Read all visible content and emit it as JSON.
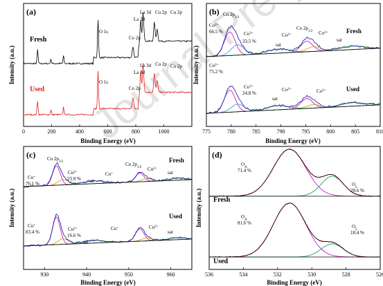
{
  "watermark": "Journal Pre-proof",
  "chart_data": [
    {
      "panel": "(a)",
      "type": "line",
      "xlabel": "Binding Energy (eV)",
      "ylabel": "Intensity (a.u.)",
      "xlim": [
        0,
        1200
      ],
      "xticks": [
        0,
        200,
        400,
        600,
        800,
        1000
      ],
      "series": [
        {
          "name": "Fresh",
          "color": "#000000"
        },
        {
          "name": "Used",
          "color": "#e02020"
        }
      ],
      "peaks": [
        {
          "x": 531,
          "h": 0.78
        },
        {
          "x": 780,
          "h": 0.22
        },
        {
          "x": 835,
          "h": 0.55
        },
        {
          "x": 852,
          "h": 0.72
        },
        {
          "x": 933,
          "h": 0.38
        },
        {
          "x": 953,
          "h": 0.25
        },
        {
          "x": 100,
          "h": 0.28
        },
        {
          "x": 195,
          "h": 0.1
        },
        {
          "x": 285,
          "h": 0.16
        }
      ],
      "annotations": {
        "fresh": [
          "La 3d",
          "La 3d",
          "O 1s",
          "Co 2p",
          "Cu 2p",
          "Cu 2p"
        ],
        "used": [
          "La 3d",
          "La 3d",
          "O 1s",
          "Co 2p",
          "Cu 2p",
          "Cu 2p"
        ]
      }
    },
    {
      "panel": "(b)",
      "type": "line",
      "xlabel": "Binding Energy (eV)",
      "ylabel": "Intensity (a.u.)",
      "xlim": [
        775,
        810
      ],
      "xticks": [
        775,
        780,
        785,
        790,
        795,
        800,
        805,
        810
      ],
      "labels": [
        "Fresh",
        "Used"
      ],
      "annotations": {
        "fresh": [
          "Co2+ 66.5 %",
          "Co 2p3/2",
          "Co3+ 33.5 %",
          "sat",
          "Co2+",
          "Co 2p1/2",
          "Co3+",
          "sat"
        ],
        "used": [
          "Co2+ 75.2 %",
          "Co3+ 24.8 %",
          "sat",
          "Co2+",
          "Co3+"
        ]
      }
    },
    {
      "panel": "(c)",
      "type": "line",
      "xlabel": "Binding Energy (eV)",
      "ylabel": "Intensity (a.u.)",
      "xlim": [
        925,
        965
      ],
      "xticks": [
        930,
        940,
        950,
        960
      ],
      "labels": [
        "Fresh",
        "Used"
      ],
      "annotations": {
        "fresh": [
          "Cu+ 76.1 %",
          "Cu 2p3/2",
          "Cu2+ 23.9 %",
          "sat",
          "Cu+",
          "Cu 2p1/2",
          "Cu2+",
          "sat"
        ],
        "used": [
          "Cu+ 83.4 %",
          "Cu2+ 16.6 %",
          "sat",
          "Cu+",
          "Cu2+",
          "sat"
        ]
      }
    },
    {
      "panel": "(d)",
      "type": "line",
      "xlabel": "Binding Energy (eV)",
      "ylabel": "Intensity (a.u.)",
      "xlim": [
        536,
        526
      ],
      "xticks": [
        536,
        534,
        532,
        530,
        528,
        526
      ],
      "labels": [
        "Fresh",
        "Used"
      ],
      "annotations": {
        "fresh": [
          "OA 71.4 %",
          "OL 28.6 %"
        ],
        "used": [
          "OA 81.6 %",
          "OL 18.4 %"
        ]
      }
    }
  ],
  "tick_text": {
    "a": [
      "0",
      "200",
      "400",
      "600",
      "800",
      "1000"
    ],
    "b": [
      "775",
      "780",
      "785",
      "790",
      "795",
      "800",
      "805",
      "810"
    ],
    "c": [
      "930",
      "940",
      "950",
      "960"
    ],
    "d": [
      "536",
      "534",
      "532",
      "530",
      "528",
      "526"
    ]
  },
  "text": {
    "pa": "(a)",
    "pb": "(b)",
    "pc": "(c)",
    "pd": "(d)",
    "xl": "Binding Energy (eV)",
    "yl": "Intensity (a.u.)",
    "fresh": "Fresh",
    "used": "Used",
    "la3d": "La 3d",
    "o1s": "O 1s",
    "co2p": "Co 2p",
    "cu2p": "Cu 2p",
    "co2": "Co",
    "co2sup": "2+",
    "co3sup": "3+",
    "cuP": "Cu",
    "cu1sup": "+",
    "cu2sup": "2+",
    "p665": "66.5 %",
    "p335": "33.5 %",
    "p752": "75.2 %",
    "p248": "24.8 %",
    "p761": "76.1 %",
    "p239": "23.9 %",
    "p834": "83.4 %",
    "p166": "16.6 %",
    "p714": "71.4 %",
    "p286": "28.6 %",
    "p816": "81.6 %",
    "p184": "18.4 %",
    "co2p32": "Co 2p",
    "co2p12": "Co 2p",
    "sub32": "3/2",
    "sub12": "1/2",
    "cu2p32": "Cu 2p",
    "cu2p12": "Cu 2p",
    "sat": "sat",
    "O": "O",
    "subA": "A",
    "subL": "L"
  }
}
